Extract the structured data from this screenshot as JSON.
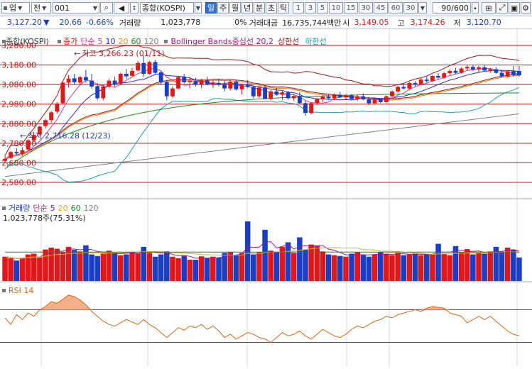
{
  "toolbar": {
    "account_label": "업",
    "period_label": "전",
    "code_value": "001",
    "name_value": "종합(KOSPI)",
    "tabs": [
      {
        "label": "일",
        "selected": true
      },
      {
        "label": "주",
        "selected": false
      },
      {
        "label": "월",
        "selected": false
      },
      {
        "label": "년",
        "selected": false
      },
      {
        "label": "분",
        "selected": false
      },
      {
        "label": "초",
        "selected": false
      },
      {
        "label": "틱",
        "selected": false
      }
    ],
    "intervals": [
      "1",
      "3",
      "5",
      "10",
      "15",
      "30",
      "45",
      "60",
      "30"
    ],
    "count_value": "90/600"
  },
  "info": {
    "price": "3,127.20",
    "price_arrow": "▼",
    "change": "20.66",
    "change_pct": "-0.66%",
    "volume_label": "거래량",
    "volume": "1,023,778",
    "volume_ratio": "0%",
    "amount_label": "거래대금",
    "amount": "16,735,744백만",
    "open_label": "시",
    "open": "3,149.05",
    "high_label": "고",
    "high": "3,174.26",
    "low_label": "저",
    "low": "3,120.70"
  },
  "price_legend": {
    "index_name": "종합(KOSPI)",
    "close_label": "종가",
    "ma_label": "단순",
    "ma_periods": [
      "5",
      "10",
      "20",
      "60",
      "120"
    ],
    "bb_label": "Bollinger Bands중심선 20,2",
    "bb_upper": "상한선",
    "bb_lower": "하한선"
  },
  "volume_legend": {
    "title": "거래량",
    "ma_label": "단순",
    "ma_periods": [
      "5",
      "20",
      "60",
      "120"
    ],
    "current": "1,023,778주(75.31%)"
  },
  "rsi_legend": {
    "title": "RSI 14"
  },
  "annotations": {
    "high": "최고 3,266.23 (01/11)",
    "low": "최저 2,716.28 (12/23)"
  },
  "colors": {
    "up": "#e0171b",
    "down": "#1b3fc4",
    "ma5": "#d23c8c",
    "ma10": "#2a2acb",
    "ma20": "#e48d20",
    "ma60": "#1f8a23",
    "ma120": "#808080",
    "bb_mid": "#a01818",
    "bb_upper": "#a01818",
    "bb_lower": "#1aa3b3",
    "rsi": "#d9640f",
    "rsi_fill": "#f4b08a"
  },
  "chart_data": [
    {
      "type": "candlestick",
      "title": "종합(KOSPI)",
      "ylim": [
        2500,
        3320
      ],
      "y_ticks": [
        3280,
        3180,
        3080,
        2980,
        2880,
        2780,
        2680,
        2580
      ],
      "y_tick_labels": [
        "3,280.00",
        "3,180.00",
        "3,080.00",
        "2,980.00",
        "2,880.00",
        "2,780.00",
        "2,680.00",
        "2,580.00"
      ],
      "horizontal_levels": [
        3280,
        3180,
        3080,
        2980,
        2880,
        2780,
        2680,
        2580
      ],
      "ohlc": [
        [
          2690,
          2720,
          2680,
          2700
        ],
        [
          2705,
          2740,
          2700,
          2735
        ],
        [
          2735,
          2755,
          2722,
          2728
        ],
        [
          2726,
          2760,
          2716,
          2745
        ],
        [
          2748,
          2802,
          2740,
          2795
        ],
        [
          2795,
          2830,
          2785,
          2822
        ],
        [
          2825,
          2870,
          2820,
          2865
        ],
        [
          2868,
          2905,
          2855,
          2898
        ],
        [
          2898,
          2944,
          2885,
          2938
        ],
        [
          2942,
          2990,
          2932,
          2983
        ],
        [
          2985,
          3095,
          2978,
          3090
        ],
        [
          3090,
          3128,
          3065,
          3110
        ],
        [
          3112,
          3135,
          3080,
          3092
        ],
        [
          3090,
          3125,
          3078,
          3118
        ],
        [
          3118,
          3155,
          3090,
          3102
        ],
        [
          3100,
          3135,
          3060,
          3070
        ],
        [
          3072,
          3088,
          3002,
          3010
        ],
        [
          3010,
          3080,
          3000,
          3070
        ],
        [
          3070,
          3110,
          3060,
          3100
        ],
        [
          3100,
          3120,
          3070,
          3082
        ],
        [
          3085,
          3140,
          3078,
          3135
        ],
        [
          3135,
          3160,
          3110,
          3122
        ],
        [
          3125,
          3166,
          3120,
          3150
        ],
        [
          3152,
          3200,
          3148,
          3190
        ],
        [
          3190,
          3230,
          3120,
          3135
        ],
        [
          3135,
          3200,
          3130,
          3195
        ],
        [
          3195,
          3206,
          3130,
          3140
        ],
        [
          3142,
          3150,
          3082,
          3092
        ],
        [
          3092,
          3105,
          3000,
          3020
        ],
        [
          3020,
          3070,
          3012,
          3060
        ],
        [
          3060,
          3125,
          3055,
          3118
        ],
        [
          3118,
          3135,
          3085,
          3092
        ],
        [
          3092,
          3120,
          3060,
          3098
        ],
        [
          3098,
          3115,
          3070,
          3080
        ],
        [
          3080,
          3110,
          3060,
          3102
        ],
        [
          3102,
          3120,
          3075,
          3082
        ],
        [
          3082,
          3102,
          3062,
          3088
        ],
        [
          3088,
          3110,
          3070,
          3080
        ],
        [
          3080,
          3100,
          3045,
          3060
        ],
        [
          3060,
          3102,
          3050,
          3094
        ],
        [
          3094,
          3106,
          3050,
          3055
        ],
        [
          3055,
          3086,
          3030,
          3078
        ],
        [
          3078,
          3102,
          3062,
          3068
        ],
        [
          3068,
          3075,
          3010,
          3020
        ],
        [
          3020,
          3075,
          3010,
          3065
        ],
        [
          3065,
          3072,
          3004,
          3006
        ],
        [
          3006,
          3052,
          3000,
          3045
        ],
        [
          3045,
          3062,
          3022,
          3028
        ],
        [
          3028,
          3050,
          3000,
          3040
        ],
        [
          3040,
          3048,
          3002,
          3010
        ],
        [
          3010,
          3032,
          2995,
          3022
        ],
        [
          3022,
          3040,
          2978,
          2985
        ],
        [
          2985,
          2998,
          2920,
          2935
        ],
        [
          2935,
          2990,
          2928,
          2985
        ],
        [
          2985,
          3012,
          2975,
          3005
        ],
        [
          3005,
          3025,
          2992,
          3018
        ],
        [
          3018,
          3032,
          3002,
          3010
        ],
        [
          3010,
          3035,
          3000,
          3028
        ],
        [
          3028,
          3042,
          3010,
          3015
        ],
        [
          3015,
          3032,
          3004,
          3025
        ],
        [
          3025,
          3032,
          3000,
          3006
        ],
        [
          3006,
          3028,
          2996,
          3020
        ],
        [
          3020,
          3035,
          3000,
          3004
        ],
        [
          3004,
          3015,
          2975,
          2984
        ],
        [
          2984,
          3010,
          2982,
          3006
        ],
        [
          3006,
          3010,
          2985,
          2990
        ],
        [
          2990,
          3025,
          2985,
          3020
        ],
        [
          3020,
          3050,
          3015,
          3045
        ],
        [
          3045,
          3075,
          3038,
          3068
        ],
        [
          3068,
          3085,
          3055,
          3060
        ],
        [
          3060,
          3092,
          3052,
          3088
        ],
        [
          3088,
          3098,
          3070,
          3082
        ],
        [
          3082,
          3112,
          3076,
          3105
        ],
        [
          3105,
          3120,
          3090,
          3098
        ],
        [
          3098,
          3130,
          3092,
          3124
        ],
        [
          3124,
          3138,
          3108,
          3115
        ],
        [
          3115,
          3145,
          3110,
          3138
        ],
        [
          3138,
          3160,
          3128,
          3150
        ],
        [
          3150,
          3166,
          3132,
          3140
        ],
        [
          3140,
          3170,
          3135,
          3162
        ],
        [
          3162,
          3182,
          3150,
          3170
        ],
        [
          3170,
          3182,
          3150,
          3158
        ],
        [
          3158,
          3176,
          3145,
          3168
        ],
        [
          3168,
          3180,
          3148,
          3152
        ],
        [
          3152,
          3165,
          3140,
          3158
        ],
        [
          3158,
          3168,
          3135,
          3140
        ],
        [
          3140,
          3155,
          3118,
          3122
        ],
        [
          3122,
          3152,
          3115,
          3148
        ],
        [
          3148,
          3175,
          3120,
          3128
        ],
        [
          3149.05,
          3174.26,
          3120.7,
          3127.2
        ]
      ],
      "annotations": [
        {
          "text": "최고 3,266.23 (01/11)",
          "value": 3266.23
        },
        {
          "text": "최저 2,716.28 (12/23)",
          "value": 2716.28
        }
      ]
    },
    {
      "type": "bar",
      "title": "거래량",
      "ylim": [
        0,
        2150
      ],
      "values": [
        640,
        600,
        540,
        610,
        700,
        720,
        620,
        830,
        880,
        850,
        760,
        900,
        820,
        780,
        940,
        700,
        660,
        720,
        800,
        750,
        680,
        700,
        760,
        720,
        900,
        740,
        640,
        700,
        780,
        640,
        600,
        660,
        560,
        560,
        650,
        600,
        640,
        620,
        740,
        760,
        680,
        740,
        1570,
        700,
        760,
        1350,
        800,
        760,
        900,
        1020,
        740,
        1150,
        830,
        960,
        940,
        780,
        700,
        680,
        660,
        640,
        720,
        760,
        680,
        640,
        700,
        760,
        720,
        680,
        740,
        680,
        700,
        720,
        680,
        720,
        700,
        980,
        720,
        680,
        920,
        760,
        840,
        700,
        740,
        720,
        780,
        900,
        760,
        880,
        820,
        620
      ],
      "up_down": [
        1,
        1,
        0,
        1,
        1,
        1,
        1,
        1,
        1,
        1,
        1,
        1,
        0,
        1,
        0,
        0,
        0,
        1,
        1,
        0,
        1,
        0,
        1,
        1,
        0,
        1,
        0,
        0,
        0,
        1,
        1,
        0,
        1,
        0,
        1,
        0,
        1,
        0,
        0,
        1,
        0,
        1,
        0,
        0,
        1,
        0,
        1,
        0,
        1,
        0,
        1,
        0,
        0,
        1,
        1,
        1,
        0,
        1,
        0,
        1,
        0,
        1,
        0,
        0,
        1,
        0,
        1,
        1,
        1,
        0,
        1,
        0,
        1,
        0,
        1,
        0,
        1,
        1,
        0,
        1,
        1,
        0,
        1,
        0,
        1,
        0,
        0,
        1,
        0,
        0
      ]
    },
    {
      "type": "line",
      "title": "RSI 14",
      "ylim": [
        0,
        100
      ],
      "reference_levels": [
        70,
        30
      ],
      "values": [
        60,
        52,
        64,
        58,
        66,
        62,
        70,
        74,
        80,
        78,
        83,
        88,
        86,
        82,
        76,
        68,
        62,
        56,
        52,
        50,
        54,
        58,
        55,
        52,
        58,
        52,
        48,
        42,
        36,
        42,
        48,
        45,
        50,
        48,
        52,
        46,
        50,
        44,
        36,
        40,
        34,
        38,
        42,
        40,
        36,
        34,
        30,
        36,
        42,
        38,
        40,
        44,
        38,
        34,
        40,
        46,
        42,
        38,
        36,
        40,
        46,
        50,
        48,
        52,
        56,
        58,
        62,
        60,
        64,
        66,
        68,
        70,
        68,
        72,
        74,
        73,
        72,
        66,
        64,
        62,
        54,
        58,
        62,
        58,
        62,
        56,
        50,
        44,
        40,
        38
      ]
    }
  ]
}
